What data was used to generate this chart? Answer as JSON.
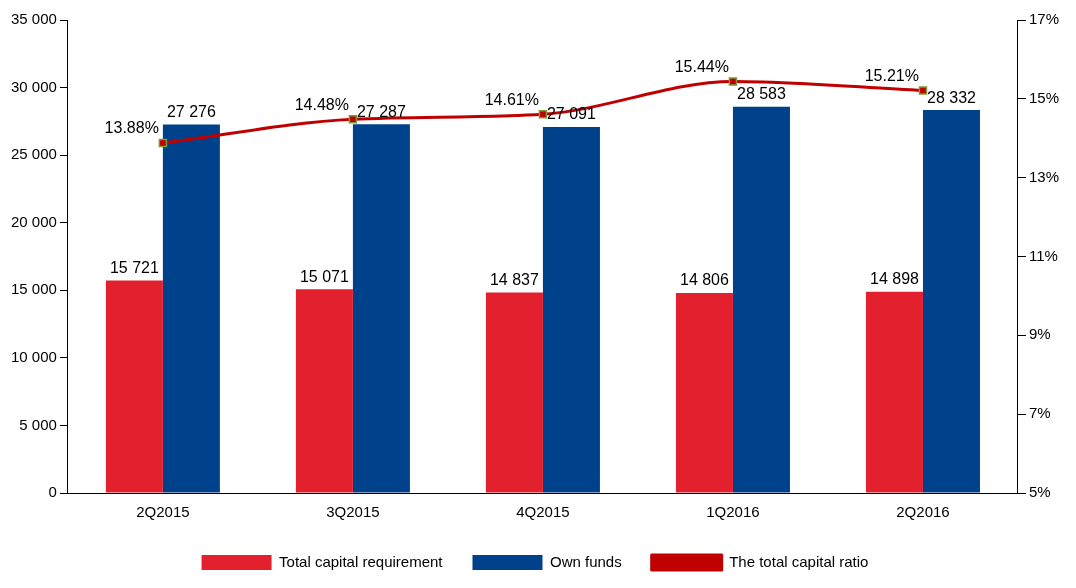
{
  "chart_data": {
    "type": "bar",
    "categories": [
      "2Q2015",
      "3Q2015",
      "4Q2015",
      "1Q2016",
      "2Q2016"
    ],
    "series": [
      {
        "name": "Total capital requirement",
        "color": "#e3202e",
        "values": [
          15721,
          15071,
          14837,
          14806,
          14898
        ],
        "value_labels": [
          "15 721",
          "15 071",
          "14 837",
          "14 806",
          "14 898"
        ]
      },
      {
        "name": "Own funds",
        "color": "#00418c",
        "values": [
          27276,
          27287,
          27091,
          28583,
          28332
        ],
        "value_labels": [
          "27 276",
          "27 287",
          "27 091",
          "28 583",
          "28 332"
        ]
      },
      {
        "name": "The total capital ratio",
        "type": "line",
        "axis": "y2",
        "color": "#c00000",
        "marker": "square",
        "values": [
          13.88,
          14.48,
          14.61,
          15.44,
          15.21
        ],
        "value_labels": [
          "13.88%",
          "14.48%",
          "14.61%",
          "15.44%",
          "15.21%"
        ]
      }
    ],
    "ylim": [
      0,
      35000
    ],
    "yticks": [
      {
        "value": 0,
        "label": "0"
      },
      {
        "value": 5000,
        "label": "5 000"
      },
      {
        "value": 10000,
        "label": "10 000"
      },
      {
        "value": 15000,
        "label": "15 000"
      },
      {
        "value": 20000,
        "label": "20 000"
      },
      {
        "value": 25000,
        "label": "25 000"
      },
      {
        "value": 30000,
        "label": "30 000"
      },
      {
        "value": 35000,
        "label": "35 000"
      }
    ],
    "y2lim": [
      5,
      17
    ],
    "y2ticks": [
      {
        "value": 5,
        "label": "5%"
      },
      {
        "value": 7,
        "label": "7%"
      },
      {
        "value": 9,
        "label": "9%"
      },
      {
        "value": 11,
        "label": "11%"
      },
      {
        "value": 13,
        "label": "13%"
      },
      {
        "value": 15,
        "label": "15%"
      },
      {
        "value": 17,
        "label": "17%"
      }
    ],
    "grid": false,
    "legend": "bottom"
  }
}
